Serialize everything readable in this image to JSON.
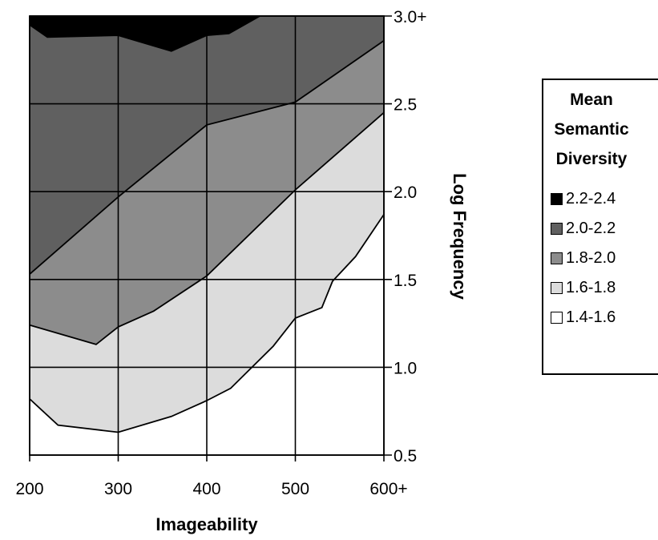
{
  "chart_data": {
    "type": "contour",
    "xlabel": "Imageability",
    "ylabel": "Log Frequency",
    "xlim": [
      200,
      600
    ],
    "ylim": [
      0.5,
      3.0
    ],
    "x_ticks": [
      "200",
      "300",
      "400",
      "500",
      "600+"
    ],
    "y_ticks": [
      "0.5",
      "1.0",
      "1.5",
      "2.0",
      "2.5",
      "3.0+"
    ],
    "grid": true,
    "legend": {
      "title_lines": [
        "Mean",
        "Semantic",
        "Diversity"
      ],
      "position": "right",
      "entries": [
        {
          "label": "2.2-2.4",
          "color": "#000000"
        },
        {
          "label": "2.0-2.2",
          "color": "#606060"
        },
        {
          "label": "1.8-2.0",
          "color": "#8c8c8c"
        },
        {
          "label": "1.6-1.8",
          "color": "#dcdcdc"
        },
        {
          "label": "1.4-1.6",
          "color": "#ffffff"
        }
      ]
    },
    "contour_boundaries": [
      {
        "level": "2.2",
        "points": [
          [
            200,
            2.95
          ],
          [
            220,
            2.88
          ],
          [
            300,
            2.89
          ],
          [
            360,
            2.8
          ],
          [
            400,
            2.89
          ],
          [
            425,
            2.9
          ],
          [
            460,
            3.0
          ]
        ]
      },
      {
        "level": "2.0",
        "points": [
          [
            200,
            1.53
          ],
          [
            300,
            1.97
          ],
          [
            400,
            2.38
          ],
          [
            500,
            2.51
          ],
          [
            600,
            2.86
          ]
        ]
      },
      {
        "level": "1.8",
        "points": [
          [
            200,
            1.24
          ],
          [
            275,
            1.13
          ],
          [
            300,
            1.23
          ],
          [
            340,
            1.32
          ],
          [
            400,
            1.52
          ],
          [
            500,
            2.01
          ],
          [
            600,
            2.45
          ]
        ]
      },
      {
        "level": "1.6",
        "points": [
          [
            200,
            0.82
          ],
          [
            232,
            0.67
          ],
          [
            300,
            0.63
          ],
          [
            360,
            0.72
          ],
          [
            400,
            0.81
          ],
          [
            427,
            0.88
          ],
          [
            475,
            1.12
          ],
          [
            500,
            1.28
          ],
          [
            530,
            1.34
          ],
          [
            542,
            1.49
          ],
          [
            568,
            1.63
          ],
          [
            600,
            1.87
          ]
        ]
      }
    ]
  }
}
